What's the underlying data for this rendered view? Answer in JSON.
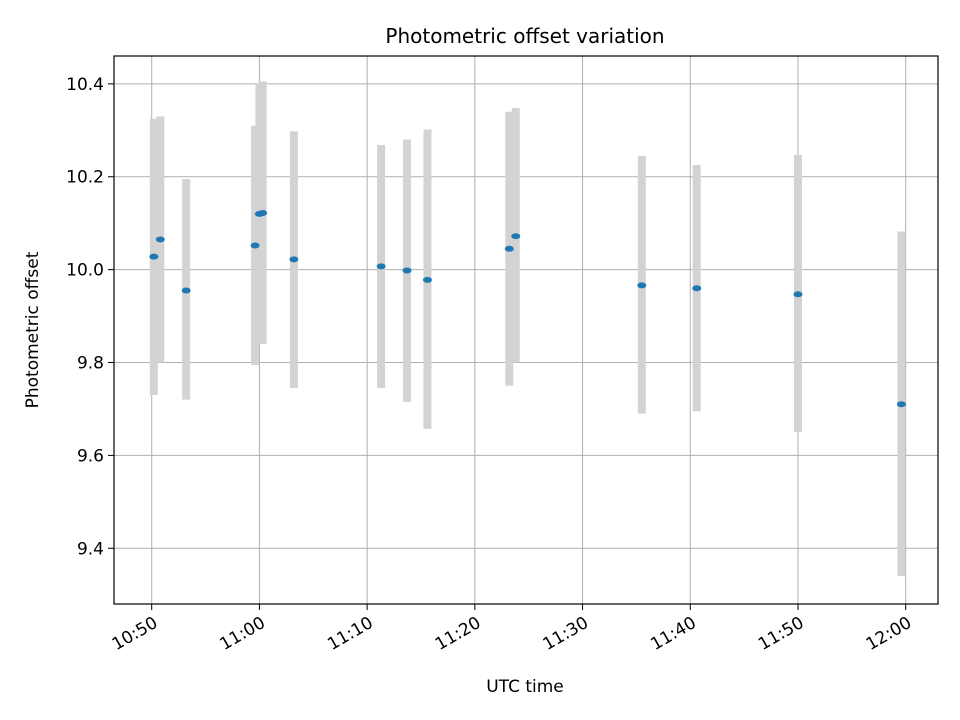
{
  "chart_data": {
    "type": "scatter",
    "title": "Photometric offset variation",
    "xlabel": "UTC time",
    "ylabel": "Photometric offset",
    "grid": true,
    "xlim": [
      "10:46:30",
      "12:03:00"
    ],
    "ylim": [
      9.28,
      10.46
    ],
    "x_ticks": [
      "10:50",
      "11:00",
      "11:10",
      "11:20",
      "11:30",
      "11:40",
      "11:50",
      "12:00"
    ],
    "y_ticks": [
      "9.4",
      "9.6",
      "9.8",
      "10.0",
      "10.2",
      "10.4"
    ],
    "colors": {
      "points": "#1f77b4",
      "error_bars": "#d3d3d3",
      "grid": "#b0b0b0"
    },
    "series": [
      {
        "points": [
          {
            "x": "10:50:12",
            "y": 10.028,
            "yerr_low": 9.73,
            "yerr_high": 10.325
          },
          {
            "x": "10:50:48",
            "y": 10.065,
            "yerr_low": 9.8,
            "yerr_high": 10.33
          },
          {
            "x": "10:53:12",
            "y": 9.955,
            "yerr_low": 9.72,
            "yerr_high": 10.195
          },
          {
            "x": "10:59:36",
            "y": 10.052,
            "yerr_low": 9.795,
            "yerr_high": 10.31
          },
          {
            "x": "11:00:00",
            "y": 10.12,
            "yerr_low": 9.84,
            "yerr_high": 10.4
          },
          {
            "x": "11:00:18",
            "y": 10.122,
            "yerr_low": 9.84,
            "yerr_high": 10.405
          },
          {
            "x": "11:03:12",
            "y": 10.022,
            "yerr_low": 9.745,
            "yerr_high": 10.298
          },
          {
            "x": "11:11:18",
            "y": 10.007,
            "yerr_low": 9.745,
            "yerr_high": 10.268
          },
          {
            "x": "11:13:42",
            "y": 9.998,
            "yerr_low": 9.715,
            "yerr_high": 10.28
          },
          {
            "x": "11:15:36",
            "y": 9.978,
            "yerr_low": 9.657,
            "yerr_high": 10.302
          },
          {
            "x": "11:23:12",
            "y": 10.045,
            "yerr_low": 9.75,
            "yerr_high": 10.34
          },
          {
            "x": "11:23:48",
            "y": 10.072,
            "yerr_low": 9.8,
            "yerr_high": 10.348
          },
          {
            "x": "11:35:30",
            "y": 9.966,
            "yerr_low": 9.69,
            "yerr_high": 10.245
          },
          {
            "x": "11:40:36",
            "y": 9.96,
            "yerr_low": 9.695,
            "yerr_high": 10.225
          },
          {
            "x": "11:50:00",
            "y": 9.947,
            "yerr_low": 9.65,
            "yerr_high": 10.247
          },
          {
            "x": "11:59:36",
            "y": 9.71,
            "yerr_low": 9.34,
            "yerr_high": 10.082
          }
        ]
      }
    ]
  }
}
